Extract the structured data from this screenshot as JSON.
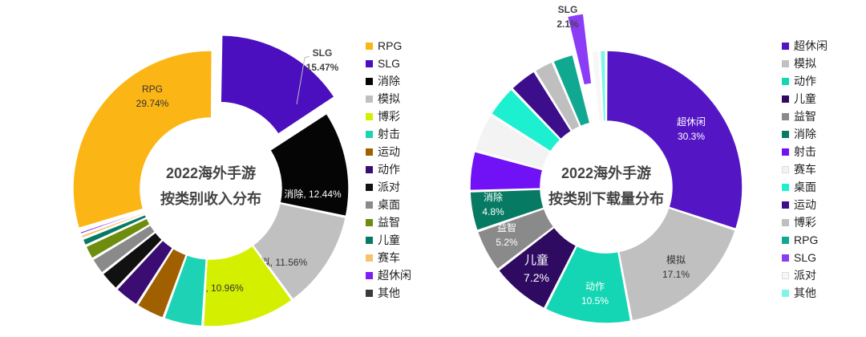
{
  "chart_data": [
    {
      "type": "pie",
      "variant": "donut",
      "title_lines": [
        "2022海外手游",
        "按类别收入分布"
      ],
      "legend_placement": "right",
      "slices": [
        {
          "name": "RPG",
          "value": 29.74,
          "label": "RPG",
          "value_label": "29.74%",
          "color": "#FBB515"
        },
        {
          "name": "SLG",
          "value": 15.47,
          "label": "SLG",
          "value_label": "15.47%",
          "color": "#4B0FBF",
          "exploded": true
        },
        {
          "name": "消除",
          "value": 12.44,
          "label": "消除, 12.44%",
          "color": "#050505"
        },
        {
          "name": "模拟",
          "value": 11.56,
          "label": "模拟, 11.56%",
          "color": "#C0C0C0"
        },
        {
          "name": "博彩",
          "value": 10.96,
          "label": "博彩, 10.96%",
          "color": "#D4F000"
        },
        {
          "name": "射击",
          "value": 4.6,
          "color": "#1ED3B5"
        },
        {
          "name": "运动",
          "value": 3.4,
          "color": "#A06000"
        },
        {
          "name": "动作",
          "value": 3.0,
          "color": "#3B0D73"
        },
        {
          "name": "派对",
          "value": 2.4,
          "color": "#111111"
        },
        {
          "name": "桌面",
          "value": 2.0,
          "color": "#8A8A8A"
        },
        {
          "name": "益智",
          "value": 1.7,
          "color": "#6E8C0E"
        },
        {
          "name": "儿童",
          "value": 0.9,
          "color": "#087A64"
        },
        {
          "name": "赛车",
          "value": 0.5,
          "color": "#F7C26B"
        },
        {
          "name": "超休闲",
          "value": 0.4,
          "color": "#7A1FF5"
        },
        {
          "name": "其他",
          "value": 0.3,
          "color": "#3A3A3A"
        }
      ],
      "legend": [
        "RPG",
        "SLG",
        "消除",
        "模拟",
        "博彩",
        "射击",
        "运动",
        "动作",
        "派对",
        "桌面",
        "益智",
        "儿童",
        "赛车",
        "超休闲",
        "其他"
      ]
    },
    {
      "type": "pie",
      "variant": "donut",
      "title_lines": [
        "2022海外手游",
        "按类别下载量分布"
      ],
      "legend_placement": "right",
      "slices": [
        {
          "name": "超休闲",
          "value": 30.3,
          "label": "超休闲",
          "value_label": "30.3%",
          "color": "#5416C4"
        },
        {
          "name": "模拟",
          "value": 17.1,
          "label": "模拟",
          "value_label": "17.1%",
          "color": "#C0C0C0"
        },
        {
          "name": "动作",
          "value": 10.5,
          "label": "动作",
          "value_label": "10.5%",
          "color": "#14D6B4"
        },
        {
          "name": "儿童",
          "value": 7.2,
          "label": "儿童",
          "value_label": "7.2%",
          "color": "#2E0B61"
        },
        {
          "name": "益智",
          "value": 5.2,
          "label": "益智",
          "value_label": "5.2%",
          "color": "#8A8A8A"
        },
        {
          "name": "消除",
          "value": 4.8,
          "label": "消除",
          "value_label": "4.8%",
          "color": "#077A63"
        },
        {
          "name": "射击",
          "value": 4.8,
          "color": "#7111F5"
        },
        {
          "name": "赛车",
          "value": 4.7,
          "color": "#F3F3F3"
        },
        {
          "name": "桌面",
          "value": 3.9,
          "color": "#1DF0D0"
        },
        {
          "name": "运动",
          "value": 3.4,
          "color": "#3C0E8C"
        },
        {
          "name": "博彩",
          "value": 2.4,
          "color": "#BFBFBF"
        },
        {
          "name": "RPG",
          "value": 2.6,
          "color": "#10A890"
        },
        {
          "name": "SLG",
          "value": 2.1,
          "label": "SLG",
          "value_label": "2.1%",
          "color": "#8B3CF5",
          "exploded": true
        },
        {
          "name": "派对",
          "value": 1.0,
          "color": "#F7F7F7"
        },
        {
          "name": "其他",
          "value": 0.8,
          "color": "#7EF5E8"
        }
      ],
      "legend": [
        "超休闲",
        "模拟",
        "动作",
        "儿童",
        "益智",
        "消除",
        "射击",
        "赛车",
        "桌面",
        "运动",
        "博彩",
        "RPG",
        "SLG",
        "派对",
        "其他"
      ]
    }
  ]
}
